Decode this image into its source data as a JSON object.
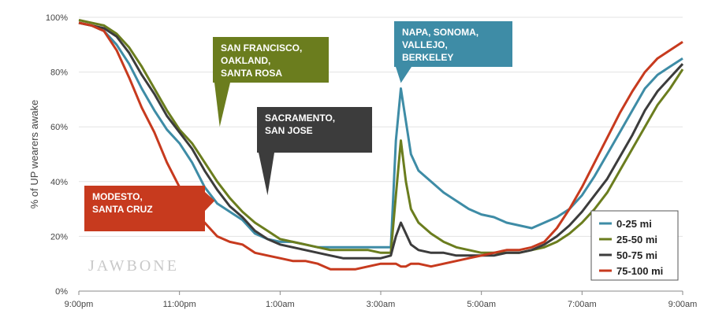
{
  "chart_data": {
    "type": "line",
    "title": "",
    "xlabel": "",
    "ylabel": "% of UP wearers awake",
    "ylim": [
      0,
      100
    ],
    "y_ticks": [
      "0%",
      "20%",
      "40%",
      "60%",
      "80%",
      "100%"
    ],
    "x_ticks": [
      "9:00pm",
      "11:00pm",
      "1:00am",
      "3:00am",
      "5:00am",
      "7:00am",
      "9:00am"
    ],
    "xlim": [
      0,
      12
    ],
    "grid": true,
    "legend_position": "bottom-right",
    "watermark": "JAWBONE",
    "series": [
      {
        "name": "0-25 mi",
        "color": "#3e8ca6",
        "x": [
          0,
          0.25,
          0.5,
          0.75,
          1,
          1.25,
          1.5,
          1.75,
          2,
          2.25,
          2.5,
          2.75,
          3,
          3.25,
          3.5,
          3.75,
          4,
          4.25,
          4.5,
          4.75,
          5,
          5.25,
          5.5,
          5.75,
          6,
          6.2,
          6.3,
          6.4,
          6.5,
          6.6,
          6.75,
          7,
          7.25,
          7.5,
          7.75,
          8,
          8.25,
          8.5,
          8.75,
          9,
          9.25,
          9.5,
          9.75,
          10,
          10.25,
          10.5,
          10.75,
          11,
          11.25,
          11.5,
          11.75,
          12
        ],
        "values": [
          98,
          97,
          95,
          90,
          83,
          74,
          66,
          59,
          54,
          47,
          38,
          32,
          29,
          26,
          21,
          19,
          18,
          18,
          17,
          16,
          16,
          16,
          16,
          16,
          16,
          16,
          55,
          74,
          62,
          50,
          44,
          40,
          36,
          33,
          30,
          28,
          27,
          25,
          24,
          23,
          25,
          27,
          30,
          35,
          42,
          50,
          58,
          66,
          74,
          79,
          82,
          85
        ]
      },
      {
        "name": "25-50 mi",
        "color": "#6b7d1e",
        "x": [
          0,
          0.25,
          0.5,
          0.75,
          1,
          1.25,
          1.5,
          1.75,
          2,
          2.25,
          2.5,
          2.75,
          3,
          3.25,
          3.5,
          3.75,
          4,
          4.25,
          4.5,
          4.75,
          5,
          5.25,
          5.5,
          5.75,
          6,
          6.2,
          6.3,
          6.4,
          6.5,
          6.6,
          6.75,
          7,
          7.25,
          7.5,
          7.75,
          8,
          8.25,
          8.5,
          8.75,
          9,
          9.25,
          9.5,
          9.75,
          10,
          10.25,
          10.5,
          10.75,
          11,
          11.25,
          11.5,
          11.75,
          12
        ],
        "values": [
          99,
          98,
          97,
          94,
          89,
          82,
          74,
          66,
          59,
          54,
          47,
          40,
          34,
          29,
          25,
          22,
          19,
          18,
          17,
          16,
          15,
          15,
          15,
          15,
          14,
          14,
          35,
          55,
          40,
          30,
          25,
          21,
          18,
          16,
          15,
          14,
          14,
          14,
          14,
          15,
          16,
          18,
          21,
          25,
          30,
          36,
          44,
          52,
          60,
          68,
          74,
          81
        ]
      },
      {
        "name": "50-75 mi",
        "color": "#3c3c3c",
        "x": [
          0,
          0.25,
          0.5,
          0.75,
          1,
          1.25,
          1.5,
          1.75,
          2,
          2.25,
          2.5,
          2.75,
          3,
          3.25,
          3.5,
          3.75,
          4,
          4.25,
          4.5,
          4.75,
          5,
          5.25,
          5.5,
          5.75,
          6,
          6.2,
          6.3,
          6.4,
          6.5,
          6.6,
          6.75,
          7,
          7.25,
          7.5,
          7.75,
          8,
          8.25,
          8.5,
          8.75,
          9,
          9.25,
          9.5,
          9.75,
          10,
          10.25,
          10.5,
          10.75,
          11,
          11.25,
          11.5,
          11.75,
          12
        ],
        "values": [
          98,
          97,
          96,
          93,
          87,
          79,
          72,
          64,
          58,
          52,
          44,
          37,
          31,
          27,
          22,
          19,
          17,
          16,
          15,
          14,
          13,
          12,
          12,
          12,
          12,
          13,
          20,
          25,
          21,
          17,
          15,
          14,
          14,
          13,
          13,
          13,
          13,
          14,
          14,
          15,
          17,
          20,
          24,
          29,
          35,
          41,
          49,
          57,
          66,
          73,
          78,
          83
        ]
      },
      {
        "name": "75-100 mi",
        "color": "#c73a1e",
        "x": [
          0,
          0.25,
          0.5,
          0.75,
          1,
          1.25,
          1.5,
          1.75,
          2,
          2.25,
          2.5,
          2.75,
          3,
          3.25,
          3.5,
          3.75,
          4,
          4.25,
          4.5,
          4.75,
          5,
          5.25,
          5.5,
          5.75,
          6,
          6.2,
          6.3,
          6.4,
          6.5,
          6.6,
          6.75,
          7,
          7.25,
          7.5,
          7.75,
          8,
          8.25,
          8.5,
          8.75,
          9,
          9.25,
          9.5,
          9.75,
          10,
          10.25,
          10.5,
          10.75,
          11,
          11.25,
          11.5,
          11.75,
          12
        ],
        "values": [
          98,
          97,
          95,
          88,
          78,
          67,
          58,
          47,
          38,
          30,
          25,
          20,
          18,
          17,
          14,
          13,
          12,
          11,
          11,
          10,
          8,
          8,
          8,
          9,
          10,
          10,
          10,
          9,
          9,
          10,
          10,
          9,
          10,
          11,
          12,
          13,
          14,
          15,
          15,
          16,
          18,
          23,
          30,
          38,
          47,
          56,
          65,
          73,
          80,
          85,
          88,
          91
        ]
      }
    ],
    "annotations": [
      {
        "lines": [
          "SAN FRANCISCO,",
          "OAKLAND,",
          "SANTA ROSA"
        ],
        "color": "#6b7d1e",
        "points_to": {
          "x": 2.8,
          "y": 60
        }
      },
      {
        "lines": [
          "SACRAMENTO,",
          "SAN JOSE"
        ],
        "color": "#3c3c3c",
        "points_to": {
          "x": 3.75,
          "y": 35
        }
      },
      {
        "lines": [
          "NAPA, SONOMA,",
          "VALLEJO,",
          "BERKELEY"
        ],
        "color": "#3e8ca6",
        "points_to": {
          "x": 6.4,
          "y": 76
        }
      },
      {
        "lines": [
          "MODESTO,",
          "SANTA CRUZ"
        ],
        "color": "#c73a1e",
        "points_to": {
          "x": 2.7,
          "y": 33
        }
      }
    ]
  }
}
